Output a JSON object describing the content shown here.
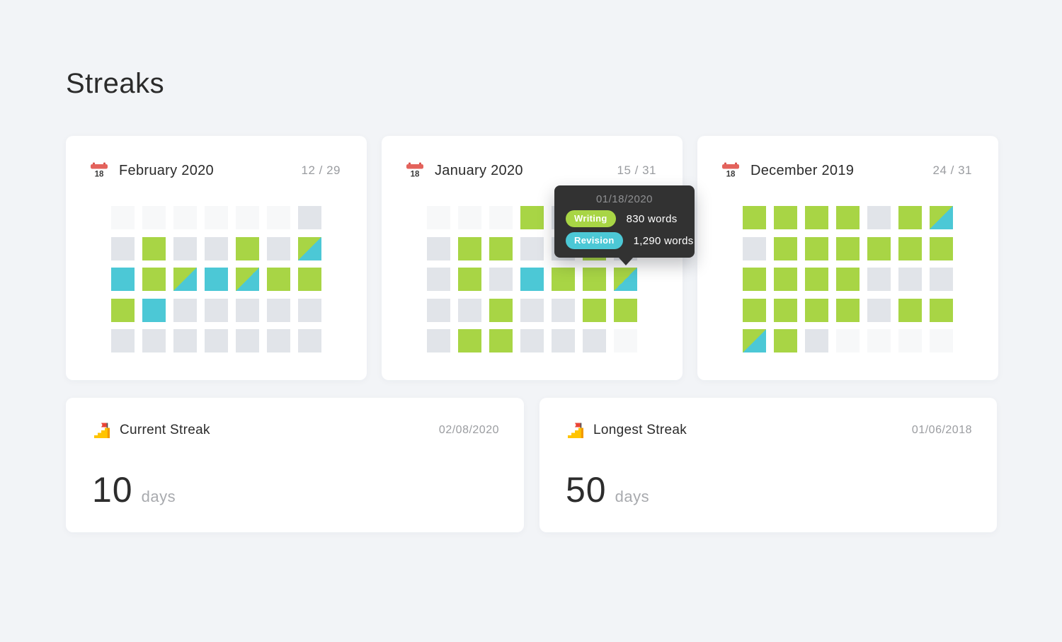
{
  "page": {
    "title": "Streaks"
  },
  "palette": {
    "writing": "#a8d545",
    "revision": "#4cc8d6",
    "none": "#e1e4e9",
    "out": "#f7f8f9",
    "tooltip_bg": "#323232",
    "page_bg": "#f2f4f7",
    "calendar_red": "#e4635c",
    "text_dark": "#2b2b2b",
    "text_gray": "#9a9ca0"
  },
  "months": [
    {
      "title": "February 2020",
      "count": "12 / 29",
      "icon_day": "18",
      "cells": [
        "out",
        "out",
        "out",
        "out",
        "out",
        "out",
        "none",
        "none",
        "writing",
        "none",
        "none",
        "writing",
        "none",
        "both",
        "revision",
        "writing",
        "both",
        "revision",
        "both",
        "writing",
        "writing",
        "writing",
        "revision",
        "none",
        "none",
        "none",
        "none",
        "none",
        "none",
        "none",
        "none",
        "none",
        "none",
        "none",
        "none"
      ]
    },
    {
      "title": "January 2020",
      "count": "15 / 31",
      "icon_day": "18",
      "cells": [
        "out",
        "out",
        "out",
        "writing",
        "none",
        "writing",
        "none",
        "none",
        "writing",
        "writing",
        "none",
        "none",
        "writing",
        "none",
        "none",
        "writing",
        "none",
        "revision",
        "writing",
        "writing",
        "both",
        "none",
        "none",
        "writing",
        "none",
        "none",
        "writing",
        "writing",
        "none",
        "writing",
        "writing",
        "none",
        "none",
        "none",
        "out"
      ]
    },
    {
      "title": "December 2019",
      "count": "24 / 31",
      "icon_day": "18",
      "cells": [
        "writing",
        "writing",
        "writing",
        "writing",
        "none",
        "writing",
        "both",
        "none",
        "writing",
        "writing",
        "writing",
        "writing",
        "writing",
        "writing",
        "writing",
        "writing",
        "writing",
        "writing",
        "none",
        "none",
        "none",
        "writing",
        "writing",
        "writing",
        "writing",
        "none",
        "writing",
        "writing",
        "both",
        "writing",
        "none",
        "out",
        "out",
        "out",
        "out"
      ]
    }
  ],
  "tooltip": {
    "date": "01/18/2020",
    "rows": [
      {
        "type": "writing",
        "label": "Writing",
        "value": "830 words"
      },
      {
        "type": "revision",
        "label": "Revision",
        "value": "1,290 words"
      }
    ]
  },
  "streaks": [
    {
      "title": "Current Streak",
      "date": "02/08/2020",
      "value": "10",
      "unit": "days"
    },
    {
      "title": "Longest Streak",
      "date": "01/06/2018",
      "value": "50",
      "unit": "days"
    }
  ]
}
